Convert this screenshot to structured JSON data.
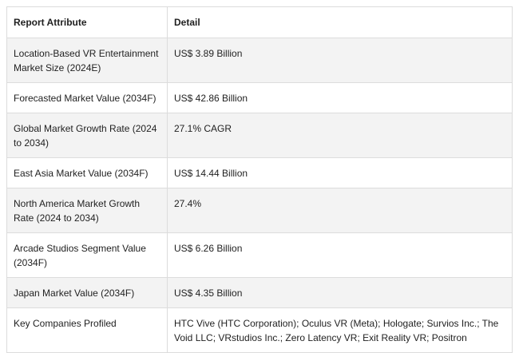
{
  "table": {
    "headers": [
      "Report Attribute",
      "Detail"
    ],
    "rows": [
      [
        "Location-Based VR Entertainment Market Size (2024E)",
        "US$ 3.89 Billion"
      ],
      [
        "Forecasted Market Value (2034F)",
        "US$ 42.86 Billion"
      ],
      [
        "Global Market Growth Rate (2024 to 2034)",
        "27.1% CAGR"
      ],
      [
        "East Asia Market Value (2034F)",
        "US$ 14.44 Billion"
      ],
      [
        "North America Market Growth Rate (2024 to 2034)",
        "27.4%"
      ],
      [
        "Arcade Studios Segment Value (2034F)",
        "US$ 6.26 Billion"
      ],
      [
        "Japan Market Value (2034F)",
        "US$ 4.35 Billion"
      ],
      [
        "Key Companies Profiled",
        "HTC Vive (HTC Corporation); Oculus VR (Meta); Hologate; Survios Inc.; The Void LLC; VRstudios Inc.; Zero Latency VR; Exit Reality VR; Positron"
      ]
    ]
  }
}
